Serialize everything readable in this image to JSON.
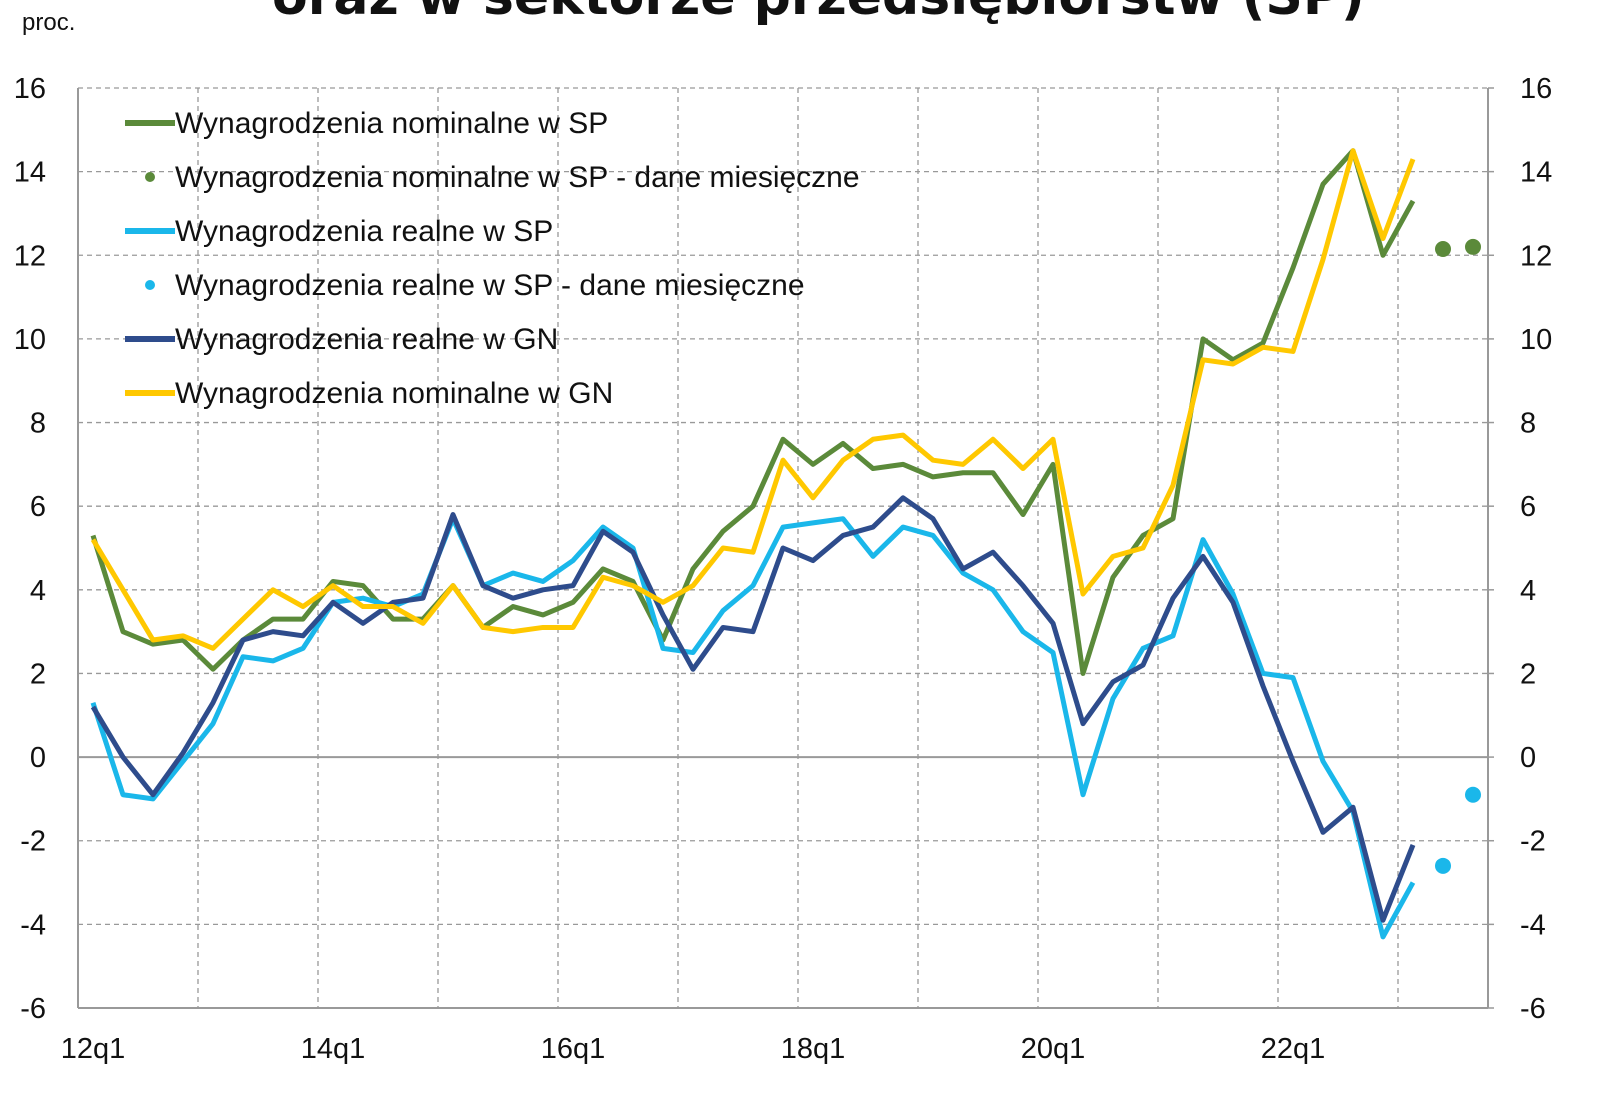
{
  "chart_data": {
    "type": "line",
    "title": "oraz w sektorze przedsiębiorstw (SP)",
    "y_label": "proc.",
    "categories": [
      "12q1",
      null,
      null,
      null,
      null,
      null,
      null,
      null,
      "14q1",
      null,
      null,
      null,
      null,
      null,
      null,
      null,
      "16q1",
      null,
      null,
      null,
      null,
      null,
      null,
      null,
      "18q1",
      null,
      null,
      null,
      null,
      null,
      null,
      null,
      "20q1",
      null,
      null,
      null,
      null,
      null,
      null,
      null,
      "22q1",
      null,
      null,
      null,
      null,
      null,
      null
    ],
    "ylim": [
      -6,
      16
    ],
    "yticks": [
      -6,
      -4,
      -2,
      0,
      2,
      4,
      6,
      8,
      10,
      12,
      14,
      16
    ],
    "y2lim": [
      -6,
      16
    ],
    "y2ticks": [
      -6,
      -4,
      -2,
      0,
      2,
      4,
      6,
      8,
      10,
      12,
      14,
      16
    ],
    "grid": true,
    "legend": "upper left",
    "series": [
      {
        "name": "Wynagrodzenia nominalne w SP",
        "color": "#5b8a3a",
        "kind": "line",
        "values": [
          5.3,
          3.0,
          2.7,
          2.8,
          2.1,
          2.8,
          3.3,
          3.3,
          4.2,
          4.1,
          3.3,
          3.3,
          4.1,
          3.1,
          3.6,
          3.4,
          3.7,
          4.5,
          4.2,
          2.8,
          4.5,
          5.4,
          6.0,
          7.6,
          7.0,
          7.5,
          6.9,
          7.0,
          6.7,
          6.8,
          6.8,
          5.8,
          7.0,
          2.0,
          4.3,
          5.3,
          5.7,
          10.0,
          9.5,
          9.9,
          11.7,
          13.7,
          14.5,
          12.0,
          13.3,
          null,
          null
        ]
      },
      {
        "name": "Wynagrodzenia nominalne w SP - dane miesięczne",
        "color": "#5b8a3a",
        "kind": "points",
        "values": [
          null,
          null,
          null,
          null,
          null,
          null,
          null,
          null,
          null,
          null,
          null,
          null,
          null,
          null,
          null,
          null,
          null,
          null,
          null,
          null,
          null,
          null,
          null,
          null,
          null,
          null,
          null,
          null,
          null,
          null,
          null,
          null,
          null,
          null,
          null,
          null,
          null,
          null,
          null,
          null,
          null,
          null,
          null,
          null,
          null,
          12.15,
          12.2
        ]
      },
      {
        "name": "Wynagrodzenia realne w SP",
        "color": "#1ab7ea",
        "kind": "line",
        "values": [
          1.3,
          -0.9,
          -1.0,
          -0.1,
          0.8,
          2.4,
          2.3,
          2.6,
          3.7,
          3.8,
          3.6,
          3.9,
          5.7,
          4.1,
          4.4,
          4.2,
          4.7,
          5.5,
          5.0,
          2.6,
          2.5,
          3.5,
          4.1,
          5.5,
          5.6,
          5.7,
          4.8,
          5.5,
          5.3,
          4.4,
          4.0,
          3.0,
          2.5,
          -0.9,
          1.4,
          2.6,
          2.9,
          5.2,
          3.9,
          2.0,
          1.9,
          -0.1,
          -1.3,
          -4.3,
          -3.0,
          null,
          null
        ]
      },
      {
        "name": "Wynagrodzenia realne w SP - dane miesięczne",
        "color": "#1ab7ea",
        "kind": "points",
        "values": [
          null,
          null,
          null,
          null,
          null,
          null,
          null,
          null,
          null,
          null,
          null,
          null,
          null,
          null,
          null,
          null,
          null,
          null,
          null,
          null,
          null,
          null,
          null,
          null,
          null,
          null,
          null,
          null,
          null,
          null,
          null,
          null,
          null,
          null,
          null,
          null,
          null,
          null,
          null,
          null,
          null,
          null,
          null,
          null,
          null,
          -2.6,
          -0.9
        ]
      },
      {
        "name": "Wynagrodzenia realne w GN",
        "color": "#2e4c8c",
        "kind": "line",
        "values": [
          1.2,
          0.0,
          -0.9,
          0.1,
          1.3,
          2.8,
          3.0,
          2.9,
          3.7,
          3.2,
          3.7,
          3.8,
          5.8,
          4.1,
          3.8,
          4.0,
          4.1,
          5.4,
          4.9,
          3.4,
          2.1,
          3.1,
          3.0,
          5.0,
          4.7,
          5.3,
          5.5,
          6.2,
          5.7,
          4.5,
          4.9,
          4.1,
          3.2,
          0.8,
          1.8,
          2.2,
          3.8,
          4.8,
          3.7,
          1.7,
          -0.1,
          -1.8,
          -1.2,
          -3.9,
          -2.1,
          null,
          null
        ]
      },
      {
        "name": "Wynagrodzenia nominalne w GN",
        "color": "#ffc800",
        "kind": "line",
        "values": [
          5.2,
          4.0,
          2.8,
          2.9,
          2.6,
          3.3,
          4.0,
          3.6,
          4.1,
          3.6,
          3.6,
          3.2,
          4.1,
          3.1,
          3.0,
          3.1,
          3.1,
          4.3,
          4.1,
          3.7,
          4.1,
          5.0,
          4.9,
          7.1,
          6.2,
          7.1,
          7.6,
          7.7,
          7.1,
          7.0,
          7.6,
          6.9,
          7.6,
          3.9,
          4.8,
          5.0,
          6.5,
          9.5,
          9.4,
          9.8,
          9.7,
          11.9,
          14.5,
          12.4,
          14.3,
          null,
          null
        ]
      }
    ]
  }
}
